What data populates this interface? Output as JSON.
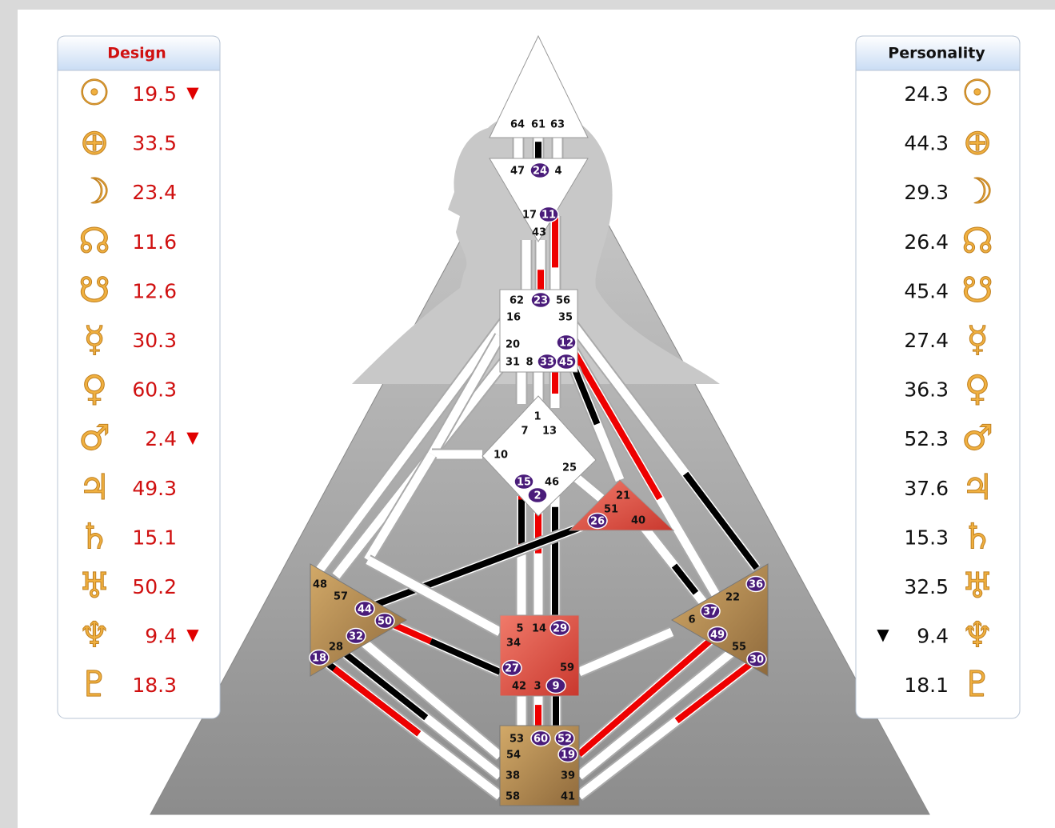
{
  "design": {
    "title": "Design",
    "symbols": [
      "☉",
      "⊕",
      "☽",
      "☊",
      "☋",
      "☿",
      "♀",
      "♂",
      "♃",
      "♄",
      "♅",
      "♆",
      "♇"
    ],
    "values": [
      19.5,
      33.5,
      23.4,
      11.6,
      12.6,
      30.3,
      60.3,
      2.4,
      49.3,
      15.1,
      50.2,
      9.4,
      18.3
    ],
    "arrows": [
      "▼",
      null,
      null,
      null,
      null,
      null,
      null,
      "▼",
      null,
      null,
      null,
      "▼",
      null
    ]
  },
  "personality": {
    "title": "Personality",
    "symbols": [
      "☉",
      "⊕",
      "☽",
      "☊",
      "☋",
      "☿",
      "♀",
      "♂",
      "♃",
      "♄",
      "♅",
      "♆",
      "♇"
    ],
    "values": [
      24.3,
      44.3,
      29.3,
      26.4,
      45.4,
      27.4,
      36.3,
      52.3,
      37.6,
      15.3,
      32.5,
      9.4,
      18.1
    ],
    "arrows": [
      null,
      null,
      null,
      null,
      null,
      null,
      null,
      null,
      null,
      null,
      null,
      "▼",
      null
    ]
  },
  "centers": {
    "head": [
      {
        "gate": 64,
        "active": false
      },
      {
        "gate": 61,
        "active": false
      },
      {
        "gate": 63,
        "active": false
      }
    ],
    "ajna": [
      {
        "gate": 47,
        "active": false
      },
      {
        "gate": 24,
        "active": true
      },
      {
        "gate": 4,
        "active": false
      },
      {
        "gate": 17,
        "active": false
      },
      {
        "gate": 11,
        "active": true
      },
      {
        "gate": 43,
        "active": false
      }
    ],
    "throat": [
      {
        "gate": 62,
        "active": false
      },
      {
        "gate": 23,
        "active": true
      },
      {
        "gate": 56,
        "active": false
      },
      {
        "gate": 16,
        "active": false
      },
      {
        "gate": 35,
        "active": false
      },
      {
        "gate": 20,
        "active": false
      },
      {
        "gate": 12,
        "active": true
      },
      {
        "gate": 31,
        "active": false
      },
      {
        "gate": 8,
        "active": false
      },
      {
        "gate": 33,
        "active": true
      },
      {
        "gate": 45,
        "active": true
      }
    ],
    "g": [
      {
        "gate": 1,
        "active": false
      },
      {
        "gate": 7,
        "active": false
      },
      {
        "gate": 13,
        "active": false
      },
      {
        "gate": 10,
        "active": false
      },
      {
        "gate": 25,
        "active": false
      },
      {
        "gate": 15,
        "active": true
      },
      {
        "gate": 46,
        "active": false
      },
      {
        "gate": 2,
        "active": true
      }
    ],
    "heart": [
      {
        "gate": 21,
        "active": false
      },
      {
        "gate": 51,
        "active": false
      },
      {
        "gate": 26,
        "active": true
      },
      {
        "gate": 40,
        "active": false
      }
    ],
    "spleen": [
      {
        "gate": 48,
        "active": false
      },
      {
        "gate": 57,
        "active": false
      },
      {
        "gate": 44,
        "active": true
      },
      {
        "gate": 50,
        "active": true
      },
      {
        "gate": 32,
        "active": true
      },
      {
        "gate": 28,
        "active": false
      },
      {
        "gate": 18,
        "active": true
      }
    ],
    "sacral": [
      {
        "gate": 5,
        "active": false
      },
      {
        "gate": 14,
        "active": false
      },
      {
        "gate": 29,
        "active": true
      },
      {
        "gate": 34,
        "active": false
      },
      {
        "gate": 27,
        "active": true
      },
      {
        "gate": 59,
        "active": false
      },
      {
        "gate": 42,
        "active": false
      },
      {
        "gate": 3,
        "active": false
      },
      {
        "gate": 9,
        "active": true
      }
    ],
    "solar_plexus": [
      {
        "gate": 36,
        "active": true
      },
      {
        "gate": 22,
        "active": false
      },
      {
        "gate": 6,
        "active": false
      },
      {
        "gate": 37,
        "active": true
      },
      {
        "gate": 49,
        "active": true
      },
      {
        "gate": 55,
        "active": false
      },
      {
        "gate": 30,
        "active": true
      }
    ],
    "root": [
      {
        "gate": 53,
        "active": false
      },
      {
        "gate": 60,
        "active": true
      },
      {
        "gate": 52,
        "active": true
      },
      {
        "gate": 54,
        "active": false
      },
      {
        "gate": 19,
        "active": true
      },
      {
        "gate": 38,
        "active": false
      },
      {
        "gate": 39,
        "active": false
      },
      {
        "gate": 58,
        "active": false
      },
      {
        "gate": 41,
        "active": false
      }
    ]
  }
}
